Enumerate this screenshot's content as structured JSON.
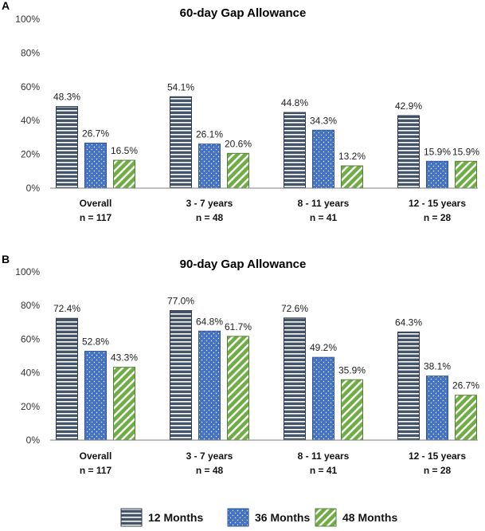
{
  "colors": {
    "s12_fill": "#44546A",
    "s12_stripe": "#ffffff",
    "s36_fill": "#4472C4",
    "s36_dot": "#ffffff",
    "s48_fill": "#70AD47",
    "s48_stripe": "#ffffff",
    "axis": "#7f7f7f"
  },
  "legend": [
    {
      "key": "s12",
      "label": "12 Months"
    },
    {
      "key": "s36",
      "label": "36 Months"
    },
    {
      "key": "s48",
      "label": "48 Months"
    }
  ],
  "chart_data": [
    {
      "panel_label": "A",
      "type": "bar",
      "title": "60-day Gap Allowance",
      "categories": [
        {
          "line1": "Overall",
          "line2": "n = 117"
        },
        {
          "line1": "3 - 7 years",
          "line2": "n = 48"
        },
        {
          "line1": "8 - 11 years",
          "line2": "n = 41"
        },
        {
          "line1": "12 - 15 years",
          "line2": "n = 28"
        }
      ],
      "series": [
        {
          "name": "12 Months",
          "key": "s12",
          "values": [
            48.3,
            54.1,
            44.8,
            42.9
          ],
          "labels": [
            "48.3%",
            "54.1%",
            "44.8%",
            "42.9%"
          ]
        },
        {
          "name": "36 Months",
          "key": "s36",
          "values": [
            26.7,
            26.1,
            34.3,
            15.9
          ],
          "labels": [
            "26.7%",
            "26.1%",
            "34.3%",
            "15.9%"
          ]
        },
        {
          "name": "48 Months",
          "key": "s48",
          "values": [
            16.5,
            20.6,
            13.2,
            15.9
          ],
          "labels": [
            "16.5%",
            "20.6%",
            "13.2%",
            "15.9%"
          ]
        }
      ],
      "ylim": [
        0,
        100
      ],
      "yticks": [
        "0%",
        "20%",
        "40%",
        "60%",
        "80%",
        "100%"
      ],
      "grid": false,
      "xlabel": "",
      "ylabel": ""
    },
    {
      "panel_label": "B",
      "type": "bar",
      "title": "90-day Gap Allowance",
      "categories": [
        {
          "line1": "Overall",
          "line2": "n = 117"
        },
        {
          "line1": "3 - 7 years",
          "line2": "n = 48"
        },
        {
          "line1": "8 - 11 years",
          "line2": "n = 41"
        },
        {
          "line1": "12 - 15 years",
          "line2": "n = 28"
        }
      ],
      "series": [
        {
          "name": "12 Months",
          "key": "s12",
          "values": [
            72.4,
            77.0,
            72.6,
            64.3
          ],
          "labels": [
            "72.4%",
            "77.0%",
            "72.6%",
            "64.3%"
          ]
        },
        {
          "name": "36 Months",
          "key": "s36",
          "values": [
            52.8,
            64.8,
            49.2,
            38.1
          ],
          "labels": [
            "52.8%",
            "64.8%",
            "49.2%",
            "38.1%"
          ]
        },
        {
          "name": "48 Months",
          "key": "s48",
          "values": [
            43.3,
            61.7,
            35.9,
            26.7
          ],
          "labels": [
            "43.3%",
            "61.7%",
            "35.9%",
            "26.7%"
          ]
        }
      ],
      "ylim": [
        0,
        100
      ],
      "yticks": [
        "0%",
        "20%",
        "40%",
        "60%",
        "80%",
        "100%"
      ],
      "grid": false,
      "xlabel": "",
      "ylabel": ""
    }
  ]
}
